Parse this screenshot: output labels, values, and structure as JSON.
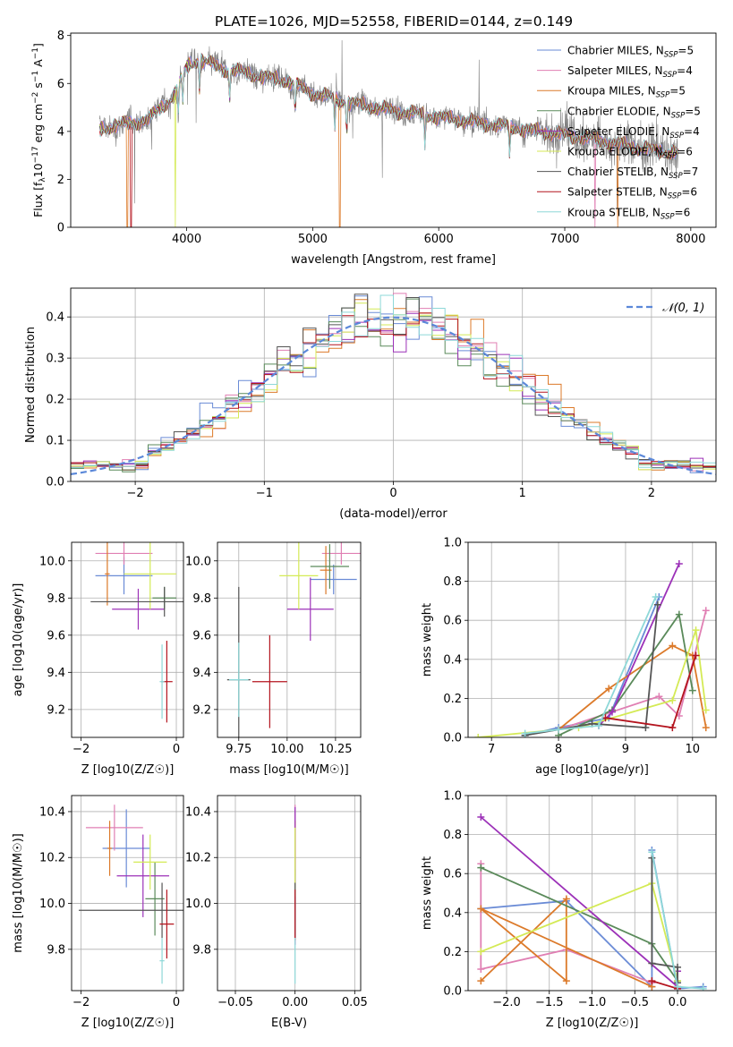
{
  "figure": {
    "title": "PLATE=1026, MJD=52558, FIBERID=0144, z=0.149"
  },
  "series_styles": [
    {
      "name": "Chabrier MILES, N_SSP=5",
      "label": "Chabrier MILES, N",
      "nssp": "5",
      "color": "#6a8bd6"
    },
    {
      "name": "Salpeter MILES, N_SSP=4",
      "label": "Salpeter MILES, N",
      "nssp": "4",
      "color": "#e07fb3"
    },
    {
      "name": "Kroupa MILES, N_SSP=5",
      "label": "Kroupa MILES, N",
      "nssp": "5",
      "color": "#dc7a2a"
    },
    {
      "name": "Chabrier ELODIE, N_SSP=5",
      "label": "Chabrier ELODIE, N",
      "nssp": "5",
      "color": "#5a8a5a"
    },
    {
      "name": "Salpeter ELODIE, N_SSP=4",
      "label": "Salpeter ELODIE, N",
      "nssp": "4",
      "color": "#9c31b8"
    },
    {
      "name": "Kroupa ELODIE, N_SSP=6",
      "label": "Kroupa ELODIE, N",
      "nssp": "6",
      "color": "#d4ea55"
    },
    {
      "name": "Chabrier STELIB, N_SSP=7",
      "label": "Chabrier STELIB, N",
      "nssp": "7",
      "color": "#555555"
    },
    {
      "name": "Salpeter STELIB, N_SSP=6",
      "label": "Salpeter STELIB, N",
      "nssp": "6",
      "color": "#b4141e"
    },
    {
      "name": "Kroupa STELIB, N_SSP=6",
      "label": "Kroupa STELIB, N",
      "nssp": "6",
      "color": "#8ed8d8"
    }
  ],
  "chart_data": [
    {
      "id": "spectrum",
      "type": "line",
      "title": "PLATE=1026, MJD=52558, FIBERID=0144, z=0.149",
      "xlabel": "wavelength [Angstrom, rest frame]",
      "ylabel_parts": [
        "Flux [f",
        "λ",
        "10",
        "−17",
        " erg cm",
        "−2",
        " s",
        "−1",
        " A",
        "−1",
        "]"
      ],
      "xlim": [
        3080,
        8200
      ],
      "ylim": [
        0,
        8.1
      ],
      "xticks": [
        "4000",
        "5000",
        "6000",
        "7000",
        "8000"
      ],
      "xtick_values": [
        4000,
        5000,
        6000,
        7000,
        8000
      ],
      "yticks": [
        "0",
        "2",
        "4",
        "6",
        "8"
      ],
      "ytick_values": [
        0,
        2,
        4,
        6,
        8
      ],
      "data_color": "#808080",
      "continuum_x": [
        3310,
        3500,
        3700,
        3900,
        4000,
        4100,
        4300,
        4500,
        4800,
        5000,
        5300,
        5600,
        6000,
        6400,
        6800,
        7200,
        7600,
        7900
      ],
      "continuum_y": [
        4.1,
        4.3,
        4.5,
        5.5,
        6.7,
        7.0,
        6.6,
        6.4,
        6.1,
        5.6,
        5.2,
        4.9,
        4.6,
        4.3,
        4.0,
        3.7,
        3.3,
        3.1
      ],
      "legend_location": "upper right"
    },
    {
      "id": "residuals",
      "type": "step-histogram",
      "xlabel": "(data-model)/error",
      "ylabel": "Normed distribution",
      "xlim": [
        -2.5,
        2.5
      ],
      "ylim": [
        0,
        0.47
      ],
      "xticks": [
        "−2",
        "−1",
        "0",
        "1",
        "2"
      ],
      "xtick_values": [
        -2,
        -1,
        0,
        1,
        2
      ],
      "yticks": [
        "0.0",
        "0.1",
        "0.2",
        "0.3",
        "0.4"
      ],
      "ytick_values": [
        0,
        0.1,
        0.2,
        0.3,
        0.4
      ],
      "reference_curve": {
        "label": "𝒩(0, 1)",
        "color": "#5b88d9",
        "mean": 0,
        "sigma": 1
      },
      "bin_width": 0.1,
      "legend_location": "upper right"
    },
    {
      "id": "age_vs_Z",
      "type": "errorbar",
      "xlabel": "Z [log10(Z/Z☉)]",
      "ylabel": "age  [log10(age/yr)]",
      "xlim": [
        -2.2,
        0.15
      ],
      "ylim": [
        9.05,
        10.1
      ],
      "xticks": [
        "−2",
        "0"
      ],
      "xtick_values": [
        -2,
        0
      ],
      "yticks": [
        "9.2",
        "9.4",
        "9.6",
        "9.8",
        "10.0"
      ],
      "ytick_values": [
        9.2,
        9.4,
        9.6,
        9.8,
        10.0
      ],
      "points": [
        {
          "series": 0,
          "x": -1.1,
          "y": 9.92,
          "xerr": 0.6,
          "yerr": 0.1
        },
        {
          "series": 1,
          "x": -1.1,
          "y": 10.04,
          "xerr": 0.6,
          "yerr": 0.06
        },
        {
          "series": 2,
          "x": -1.45,
          "y": 9.93,
          "xerr": 0.05,
          "yerr": 0.17
        },
        {
          "series": 3,
          "x": -0.25,
          "y": 9.8,
          "xerr": 0.25,
          "yerr": 0.06
        },
        {
          "series": 4,
          "x": -0.8,
          "y": 9.74,
          "xerr": 0.55,
          "yerr": 0.11
        },
        {
          "series": 5,
          "x": -0.55,
          "y": 9.93,
          "xerr": 0.55,
          "yerr": 0.19
        },
        {
          "series": 6,
          "x": -0.25,
          "y": 9.78,
          "xerr": 1.55,
          "yerr": 0.08
        },
        {
          "series": 7,
          "x": -0.2,
          "y": 9.35,
          "xerr": 0.12,
          "yerr": 0.22
        },
        {
          "series": 8,
          "x": -0.3,
          "y": 9.35,
          "xerr": 0.05,
          "yerr": 0.2
        }
      ]
    },
    {
      "id": "age_vs_mass",
      "type": "errorbar",
      "xlabel": "mass [log10(M/M☉)]",
      "ylabel": "",
      "xlim": [
        9.64,
        10.38
      ],
      "ylim": [
        9.05,
        10.1
      ],
      "xticks": [
        "9.75",
        "10.00",
        "10.25"
      ],
      "xtick_values": [
        9.75,
        10.0,
        10.25
      ],
      "yticks": [
        "9.2",
        "9.4",
        "9.6",
        "9.8",
        "10.0"
      ],
      "ytick_values": [
        9.2,
        9.4,
        9.6,
        9.8,
        10.0
      ],
      "points": [
        {
          "series": 0,
          "x": 10.24,
          "y": 9.9,
          "xerr": 0.12,
          "yerr": 0.08
        },
        {
          "series": 1,
          "x": 10.28,
          "y": 10.04,
          "xerr": 0.1,
          "yerr": 0.06
        },
        {
          "series": 2,
          "x": 10.2,
          "y": 9.95,
          "xerr": 0.03,
          "yerr": 0.13
        },
        {
          "series": 3,
          "x": 10.22,
          "y": 9.97,
          "xerr": 0.1,
          "yerr": 0.12
        },
        {
          "series": 4,
          "x": 10.12,
          "y": 9.74,
          "xerr": 0.12,
          "yerr": 0.17
        },
        {
          "series": 5,
          "x": 10.06,
          "y": 9.92,
          "xerr": 0.1,
          "yerr": 0.18
        },
        {
          "series": 6,
          "x": 9.75,
          "y": 9.36,
          "xerr": 0.06,
          "yerr": 0.5
        },
        {
          "series": 7,
          "x": 9.91,
          "y": 9.35,
          "xerr": 0.09,
          "yerr": 0.25
        },
        {
          "series": 8,
          "x": 9.75,
          "y": 9.36,
          "xerr": 0.05,
          "yerr": 0.2
        }
      ]
    },
    {
      "id": "weight_vs_age",
      "type": "line",
      "xlabel": "age  [log10(age/yr)]",
      "ylabel": "mass weight",
      "xlim": [
        6.65,
        10.35
      ],
      "ylim": [
        0,
        1.0
      ],
      "xticks": [
        "7",
        "8",
        "9",
        "10"
      ],
      "xtick_values": [
        7,
        8,
        9,
        10
      ],
      "yticks": [
        "0.0",
        "0.2",
        "0.4",
        "0.6",
        "0.8",
        "1.0"
      ],
      "ytick_values": [
        0,
        0.2,
        0.4,
        0.6,
        0.8,
        1.0
      ],
      "series": [
        {
          "series": 0,
          "x": [
            7.5,
            8.0,
            8.75,
            9.5
          ],
          "y": [
            0.01,
            0.05,
            0.1,
            0.72
          ]
        },
        {
          "series": 1,
          "x": [
            8.0,
            9.5,
            9.8,
            10.2
          ],
          "y": [
            0.04,
            0.21,
            0.11,
            0.65
          ]
        },
        {
          "series": 2,
          "x": [
            8.0,
            8.75,
            9.7,
            10.0,
            10.2
          ],
          "y": [
            0.04,
            0.25,
            0.47,
            0.42,
            0.05
          ]
        },
        {
          "series": 3,
          "x": [
            8.0,
            8.8,
            9.8,
            10.0
          ],
          "y": [
            0.01,
            0.14,
            0.63,
            0.24
          ]
        },
        {
          "series": 4,
          "x": [
            8.6,
            8.8,
            9.8
          ],
          "y": [
            0.06,
            0.13,
            0.89
          ]
        },
        {
          "series": 5,
          "x": [
            6.8,
            8.3,
            9.7,
            10.05,
            10.2
          ],
          "y": [
            0.0,
            0.05,
            0.19,
            0.55,
            0.14
          ]
        },
        {
          "series": 6,
          "x": [
            7.5,
            8.5,
            9.3,
            9.48
          ],
          "y": [
            0.01,
            0.07,
            0.05,
            0.68
          ]
        },
        {
          "series": 7,
          "x": [
            8.7,
            9.7,
            10.05
          ],
          "y": [
            0.1,
            0.05,
            0.42
          ]
        },
        {
          "series": 8,
          "x": [
            7.5,
            8.0,
            8.6,
            9.45
          ],
          "y": [
            0.02,
            0.04,
            0.06,
            0.72
          ]
        }
      ]
    },
    {
      "id": "mass_vs_Z",
      "type": "errorbar",
      "xlabel": "Z [log10(Z/Z☉)]",
      "ylabel": "mass [log10(M/M☉)]",
      "xlim": [
        -2.2,
        0.15
      ],
      "ylim": [
        9.62,
        10.47
      ],
      "xticks": [
        "−2",
        "0"
      ],
      "xtick_values": [
        -2,
        0
      ],
      "yticks": [
        "9.8",
        "10.0",
        "10.2",
        "10.4"
      ],
      "ytick_values": [
        9.8,
        10.0,
        10.2,
        10.4
      ],
      "points": [
        {
          "series": 0,
          "x": -1.05,
          "y": 10.24,
          "xerr": 0.5,
          "yerr": 0.17
        },
        {
          "series": 1,
          "x": -1.3,
          "y": 10.33,
          "xerr": 0.6,
          "yerr": 0.1
        },
        {
          "series": 2,
          "x": -1.4,
          "y": 10.24,
          "xerr": 0.05,
          "yerr": 0.12
        },
        {
          "series": 3,
          "x": -0.45,
          "y": 10.02,
          "xerr": 0.2,
          "yerr": 0.16
        },
        {
          "series": 4,
          "x": -0.7,
          "y": 10.12,
          "xerr": 0.55,
          "yerr": 0.18
        },
        {
          "series": 5,
          "x": -0.55,
          "y": 10.18,
          "xerr": 0.35,
          "yerr": 0.12
        },
        {
          "series": 6,
          "x": -0.3,
          "y": 9.97,
          "xerr": 1.75,
          "yerr": 0.12
        },
        {
          "series": 7,
          "x": -0.2,
          "y": 9.91,
          "xerr": 0.15,
          "yerr": 0.15
        },
        {
          "series": 8,
          "x": -0.3,
          "y": 9.75,
          "xerr": 0.05,
          "yerr": 0.1
        }
      ]
    },
    {
      "id": "mass_vs_ebv",
      "type": "errorbar",
      "xlabel": "E(B-V)",
      "ylabel": "",
      "xlim": [
        -0.065,
        0.055
      ],
      "ylim": [
        9.62,
        10.47
      ],
      "xticks": [
        "−0.05",
        "0.00",
        "0.05"
      ],
      "xtick_values": [
        -0.05,
        0.0,
        0.05
      ],
      "yticks": [
        "9.8",
        "10.0",
        "10.2",
        "10.4"
      ],
      "ytick_values": [
        9.8,
        10.0,
        10.2,
        10.4
      ],
      "points": [
        {
          "series": 0,
          "x": 0.0,
          "y": 10.22,
          "xerr": 0,
          "yerr": 0.2
        },
        {
          "series": 1,
          "x": 0.0,
          "y": 10.3,
          "xerr": 0,
          "yerr": 0.13
        },
        {
          "series": 2,
          "x": 0.0,
          "y": 10.24,
          "xerr": 0,
          "yerr": 0.12
        },
        {
          "series": 3,
          "x": 0.0,
          "y": 10.0,
          "xerr": 0,
          "yerr": 0.15
        },
        {
          "series": 4,
          "x": 0.0,
          "y": 10.12,
          "xerr": 0,
          "yerr": 0.3
        },
        {
          "series": 5,
          "x": 0.0,
          "y": 10.18,
          "xerr": 0,
          "yerr": 0.15
        },
        {
          "series": 6,
          "x": 0.0,
          "y": 9.97,
          "xerr": 0,
          "yerr": 0.12
        },
        {
          "series": 7,
          "x": 0.0,
          "y": 9.95,
          "xerr": 0,
          "yerr": 0.11
        },
        {
          "series": 8,
          "x": 0.0,
          "y": 9.75,
          "xerr": 0,
          "yerr": 0.1
        }
      ]
    },
    {
      "id": "weight_vs_Z",
      "type": "line",
      "xlabel": "Z [log10(Z/Z☉)]",
      "ylabel": "mass weight",
      "xlim": [
        -2.45,
        0.45
      ],
      "ylim": [
        0,
        1.0
      ],
      "xticks": [
        "−2.0",
        "−1.5",
        "−1.0",
        "−0.5",
        "0.0"
      ],
      "xtick_values": [
        -2.0,
        -1.5,
        -1.0,
        -0.5,
        0.0
      ],
      "yticks": [
        "0.0",
        "0.2",
        "0.4",
        "0.6",
        "0.8",
        "1.0"
      ],
      "ytick_values": [
        0,
        0.2,
        0.4,
        0.6,
        0.8,
        1.0
      ],
      "series": [
        {
          "series": 0,
          "x": [
            -2.3,
            -1.3,
            -0.3,
            -0.3,
            0.0,
            0.3
          ],
          "y": [
            0.42,
            0.46,
            0.02,
            0.72,
            0.01,
            0.02
          ]
        },
        {
          "series": 1,
          "x": [
            -2.3,
            -2.3,
            -1.3,
            -0.3
          ],
          "y": [
            0.65,
            0.11,
            0.21,
            0.04
          ]
        },
        {
          "series": 2,
          "x": [
            -2.3,
            -1.3,
            -1.3,
            -2.3,
            -0.3
          ],
          "y": [
            0.05,
            0.47,
            0.05,
            0.42,
            0.02
          ]
        },
        {
          "series": 3,
          "x": [
            -2.3,
            -0.3,
            0.0
          ],
          "y": [
            0.63,
            0.24,
            0.05
          ]
        },
        {
          "series": 4,
          "x": [
            -2.3,
            0.0,
            0.0
          ],
          "y": [
            0.89,
            0.02,
            0.1
          ]
        },
        {
          "series": 5,
          "x": [
            -2.3,
            -0.3,
            0.0,
            0.0
          ],
          "y": [
            0.2,
            0.55,
            0.05,
            0.02
          ]
        },
        {
          "series": 6,
          "x": [
            -0.3,
            -0.3,
            0.0,
            0.0
          ],
          "y": [
            0.68,
            0.14,
            0.12,
            0.04
          ]
        },
        {
          "series": 7,
          "x": [
            -0.3,
            0.0
          ],
          "y": [
            0.05,
            0.01
          ]
        },
        {
          "series": 8,
          "x": [
            -0.3,
            0.0,
            0.3
          ],
          "y": [
            0.71,
            0.02,
            0.01
          ]
        }
      ]
    }
  ]
}
